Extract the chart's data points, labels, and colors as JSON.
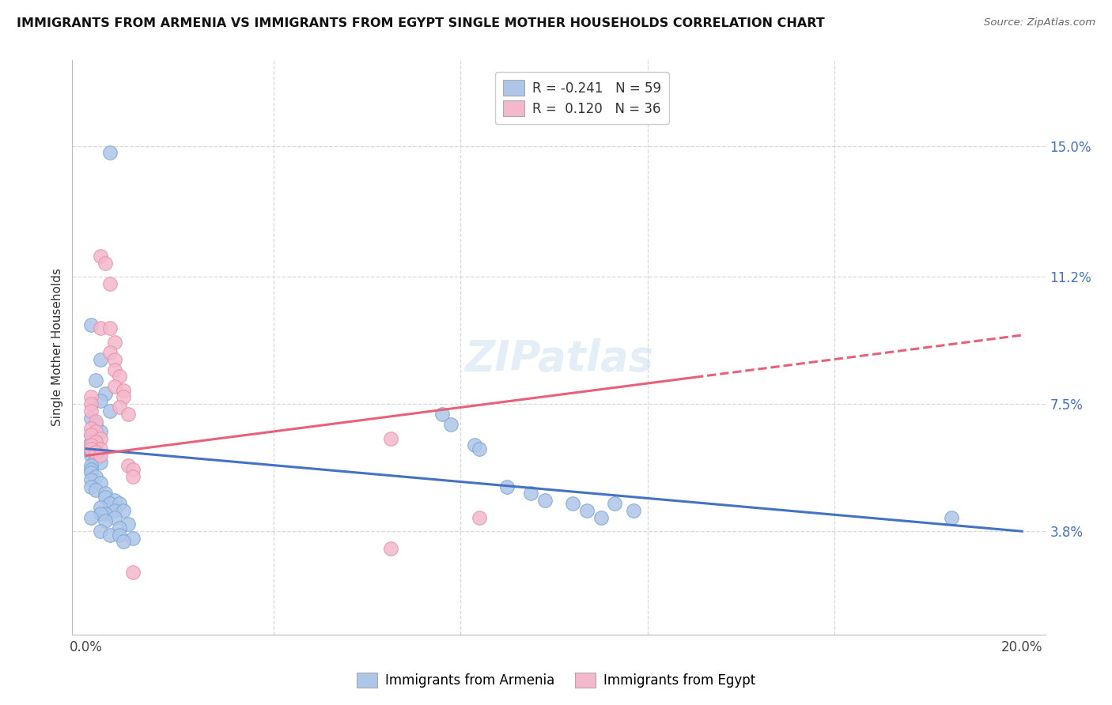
{
  "title": "IMMIGRANTS FROM ARMENIA VS IMMIGRANTS FROM EGYPT SINGLE MOTHER HOUSEHOLDS CORRELATION CHART",
  "source": "Source: ZipAtlas.com",
  "ylabel": "Single Mother Households",
  "ytick_labels": [
    "3.8%",
    "7.5%",
    "11.2%",
    "15.0%"
  ],
  "ytick_values": [
    0.038,
    0.075,
    0.112,
    0.15
  ],
  "xtick_values": [
    0.0,
    0.04,
    0.08,
    0.12,
    0.16,
    0.2
  ],
  "xlim": [
    -0.003,
    0.205
  ],
  "ylim": [
    0.008,
    0.175
  ],
  "armenia_face_color": "#aec6e8",
  "armenia_edge_color": "#7ba7d4",
  "egypt_face_color": "#f4b8cc",
  "egypt_edge_color": "#e890a8",
  "armenia_line_color": "#4472C4",
  "egypt_line_color": "#e8607a",
  "legend_arm_label_r": "R = -0.241",
  "legend_arm_label_n": "N = 59",
  "legend_egy_label_r": "R =  0.120",
  "legend_egy_label_n": "N = 36",
  "bottom_legend_arm": "Immigrants from Armenia",
  "bottom_legend_egy": "Immigrants from Egypt",
  "arm_line_y0": 0.062,
  "arm_line_y1": 0.038,
  "egy_line_y0": 0.06,
  "egy_line_y1": 0.095,
  "egy_line_solid_end": 0.13,
  "armenia_points": [
    [
      0.005,
      0.148
    ],
    [
      0.001,
      0.098
    ],
    [
      0.003,
      0.088
    ],
    [
      0.002,
      0.082
    ],
    [
      0.004,
      0.078
    ],
    [
      0.003,
      0.076
    ],
    [
      0.005,
      0.073
    ],
    [
      0.001,
      0.071
    ],
    [
      0.002,
      0.069
    ],
    [
      0.003,
      0.067
    ],
    [
      0.001,
      0.066
    ],
    [
      0.001,
      0.064
    ],
    [
      0.002,
      0.063
    ],
    [
      0.001,
      0.062
    ],
    [
      0.001,
      0.061
    ],
    [
      0.001,
      0.06
    ],
    [
      0.002,
      0.059
    ],
    [
      0.003,
      0.058
    ],
    [
      0.001,
      0.057
    ],
    [
      0.001,
      0.056
    ],
    [
      0.001,
      0.055
    ],
    [
      0.002,
      0.054
    ],
    [
      0.001,
      0.053
    ],
    [
      0.003,
      0.052
    ],
    [
      0.001,
      0.051
    ],
    [
      0.002,
      0.05
    ],
    [
      0.004,
      0.049
    ],
    [
      0.004,
      0.048
    ],
    [
      0.006,
      0.047
    ],
    [
      0.005,
      0.046
    ],
    [
      0.007,
      0.046
    ],
    [
      0.003,
      0.045
    ],
    [
      0.006,
      0.044
    ],
    [
      0.008,
      0.044
    ],
    [
      0.004,
      0.043
    ],
    [
      0.003,
      0.043
    ],
    [
      0.001,
      0.042
    ],
    [
      0.006,
      0.042
    ],
    [
      0.004,
      0.041
    ],
    [
      0.009,
      0.04
    ],
    [
      0.007,
      0.039
    ],
    [
      0.003,
      0.038
    ],
    [
      0.005,
      0.037
    ],
    [
      0.007,
      0.037
    ],
    [
      0.01,
      0.036
    ],
    [
      0.008,
      0.035
    ],
    [
      0.076,
      0.072
    ],
    [
      0.078,
      0.069
    ],
    [
      0.083,
      0.063
    ],
    [
      0.084,
      0.062
    ],
    [
      0.09,
      0.051
    ],
    [
      0.095,
      0.049
    ],
    [
      0.098,
      0.047
    ],
    [
      0.104,
      0.046
    ],
    [
      0.107,
      0.044
    ],
    [
      0.11,
      0.042
    ],
    [
      0.113,
      0.046
    ],
    [
      0.117,
      0.044
    ],
    [
      0.185,
      0.042
    ]
  ],
  "egypt_points": [
    [
      0.001,
      0.077
    ],
    [
      0.001,
      0.075
    ],
    [
      0.001,
      0.073
    ],
    [
      0.002,
      0.07
    ],
    [
      0.001,
      0.068
    ],
    [
      0.002,
      0.067
    ],
    [
      0.001,
      0.066
    ],
    [
      0.003,
      0.065
    ],
    [
      0.002,
      0.064
    ],
    [
      0.001,
      0.063
    ],
    [
      0.003,
      0.062
    ],
    [
      0.001,
      0.062
    ],
    [
      0.002,
      0.061
    ],
    [
      0.003,
      0.06
    ],
    [
      0.003,
      0.097
    ],
    [
      0.005,
      0.097
    ],
    [
      0.003,
      0.118
    ],
    [
      0.004,
      0.116
    ],
    [
      0.005,
      0.11
    ],
    [
      0.006,
      0.093
    ],
    [
      0.005,
      0.09
    ],
    [
      0.006,
      0.088
    ],
    [
      0.006,
      0.085
    ],
    [
      0.007,
      0.083
    ],
    [
      0.006,
      0.08
    ],
    [
      0.008,
      0.079
    ],
    [
      0.008,
      0.077
    ],
    [
      0.007,
      0.074
    ],
    [
      0.009,
      0.072
    ],
    [
      0.009,
      0.057
    ],
    [
      0.01,
      0.056
    ],
    [
      0.01,
      0.054
    ],
    [
      0.065,
      0.065
    ],
    [
      0.065,
      0.033
    ],
    [
      0.084,
      0.042
    ],
    [
      0.01,
      0.026
    ]
  ]
}
